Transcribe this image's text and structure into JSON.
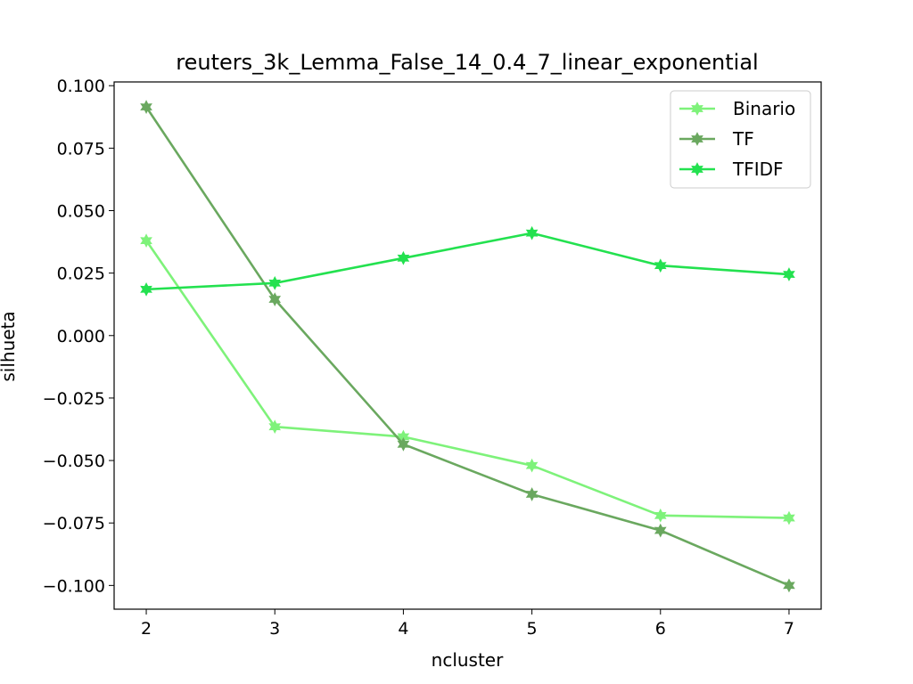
{
  "chart_data": {
    "type": "line",
    "title": "reuters_3k_Lemma_False_14_0.4_7_linear_exponential",
    "xlabel": "ncluster",
    "ylabel": "silhueta",
    "x": [
      2,
      3,
      4,
      5,
      6,
      7
    ],
    "xlim": [
      1.75,
      7.25
    ],
    "ylim": [
      -0.1095,
      0.1015
    ],
    "xticks": [
      2,
      3,
      4,
      5,
      6,
      7
    ],
    "xtick_labels": [
      "2",
      "3",
      "4",
      "5",
      "6",
      "7"
    ],
    "yticks": [
      0.1,
      0.075,
      0.05,
      0.025,
      0.0,
      -0.025,
      -0.05,
      -0.075,
      -0.1
    ],
    "ytick_labels": [
      "0.100",
      "0.075",
      "0.050",
      "0.025",
      "0.000",
      "−0.025",
      "−0.050",
      "−0.075",
      "−0.100"
    ],
    "grid": false,
    "legend_position": "top-right",
    "series": [
      {
        "name": "Binario",
        "color": "#7ef27a",
        "marker": "star",
        "values": [
          0.038,
          -0.0365,
          -0.0405,
          -0.052,
          -0.072,
          -0.073
        ]
      },
      {
        "name": "TF",
        "color": "#6aa85f",
        "marker": "star",
        "values": [
          0.0915,
          0.0145,
          -0.0435,
          -0.0635,
          -0.078,
          -0.1
        ]
      },
      {
        "name": "TFIDF",
        "color": "#23e14f",
        "marker": "star",
        "values": [
          0.0185,
          0.021,
          0.031,
          0.041,
          0.028,
          0.0245
        ]
      }
    ]
  }
}
